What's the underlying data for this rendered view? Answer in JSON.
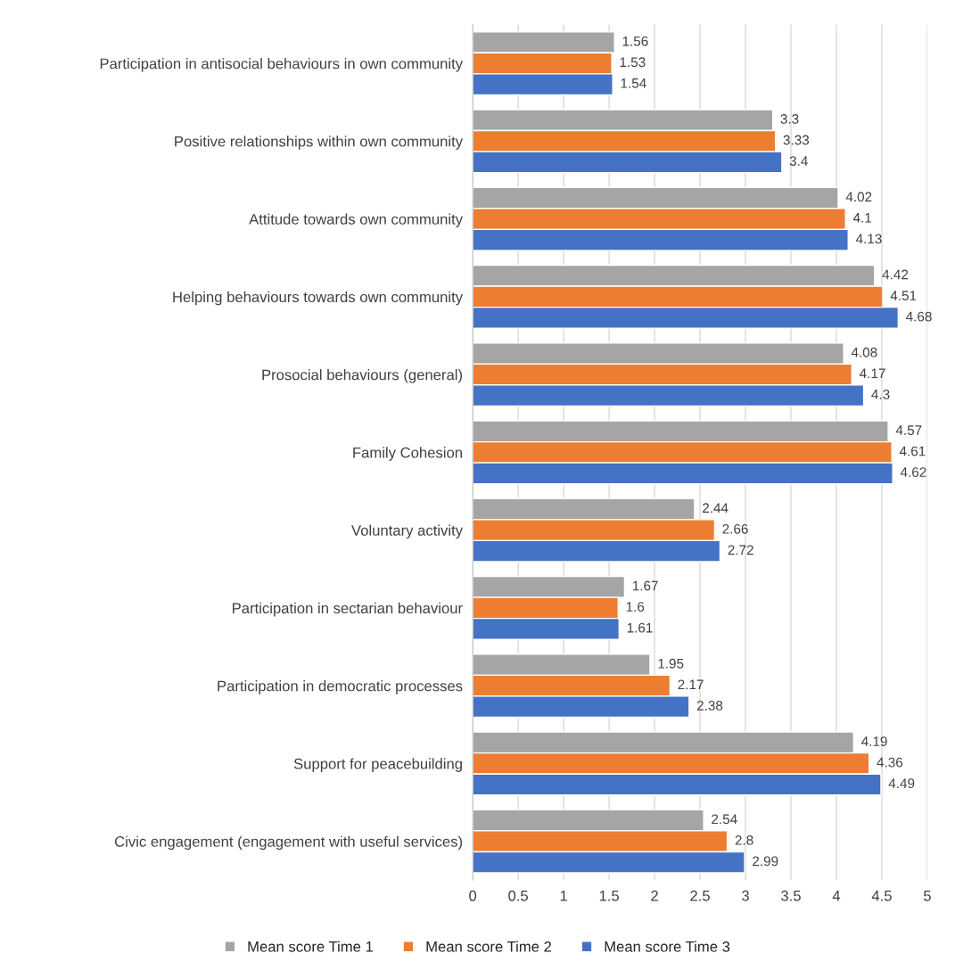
{
  "chart_data": {
    "type": "bar",
    "orientation": "horizontal",
    "categories": [
      "Participation in antisocial behaviours in own community",
      "Positive relationships within own community",
      "Attitude towards own community",
      "Helping behaviours towards own community",
      "Prosocial behaviours (general)",
      "Family Cohesion",
      "Voluntary activity",
      "Participation in sectarian behaviour",
      "Participation in democratic processes",
      "Support for peacebuilding",
      "Civic engagement (engagement with useful services)"
    ],
    "series": [
      {
        "name": "Mean score Time 1",
        "color": "#a5a5a5",
        "values": [
          1.56,
          3.3,
          4.02,
          4.42,
          4.08,
          4.57,
          2.44,
          1.67,
          1.95,
          4.19,
          2.54
        ]
      },
      {
        "name": "Mean score Time 2",
        "color": "#ed7d31",
        "values": [
          1.53,
          3.33,
          4.1,
          4.51,
          4.17,
          4.61,
          2.66,
          1.6,
          2.17,
          4.36,
          2.8
        ]
      },
      {
        "name": "Mean score Time 3",
        "color": "#4472c4",
        "values": [
          1.54,
          3.4,
          4.13,
          4.68,
          4.3,
          4.62,
          2.72,
          1.61,
          2.38,
          4.49,
          2.99
        ]
      }
    ],
    "xlim": [
      0,
      5
    ],
    "xticks": [
      0,
      0.5,
      1,
      1.5,
      2,
      2.5,
      3,
      3.5,
      4,
      4.5,
      5
    ],
    "grid": "x",
    "legend": "bottom",
    "data_labels": true
  }
}
